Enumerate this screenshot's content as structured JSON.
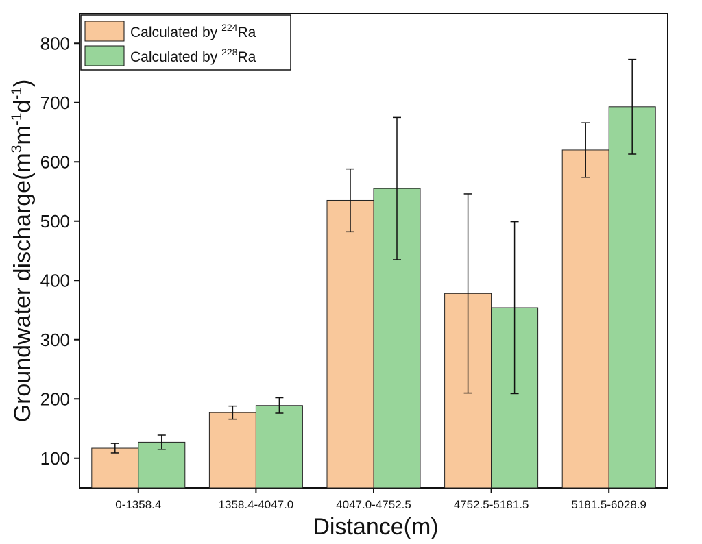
{
  "chart_data": {
    "type": "bar",
    "categories": [
      "0-1358.4",
      "1358.4-4047.0",
      "4047.0-4752.5",
      "4752.5-5181.5",
      "5181.5-6028.9"
    ],
    "series": [
      {
        "name_main": "Calculated by ",
        "name_sup": "224",
        "name_tail": "Ra",
        "color": "#f9c89b",
        "values": [
          117,
          177,
          535,
          378,
          620
        ],
        "errors": [
          8,
          11,
          53,
          168,
          46
        ]
      },
      {
        "name_main": "Calculated by ",
        "name_sup": "228",
        "name_tail": "Ra",
        "color": "#98d59a",
        "values": [
          127,
          189,
          555,
          354,
          693
        ],
        "errors": [
          12,
          13,
          120,
          145,
          80
        ]
      }
    ],
    "xlabel": "Distance(m)",
    "ylabel": {
      "main": "Groundwater discharge(m",
      "sup1": "3",
      "mid1": "m",
      "sup2": "-1",
      "mid2": "d",
      "sup3": "-1",
      "end": ")"
    },
    "ylim": [
      50,
      850
    ],
    "yticks": [
      100,
      200,
      300,
      400,
      500,
      600,
      700,
      800
    ],
    "legend_position": "top-left",
    "grid": false
  }
}
